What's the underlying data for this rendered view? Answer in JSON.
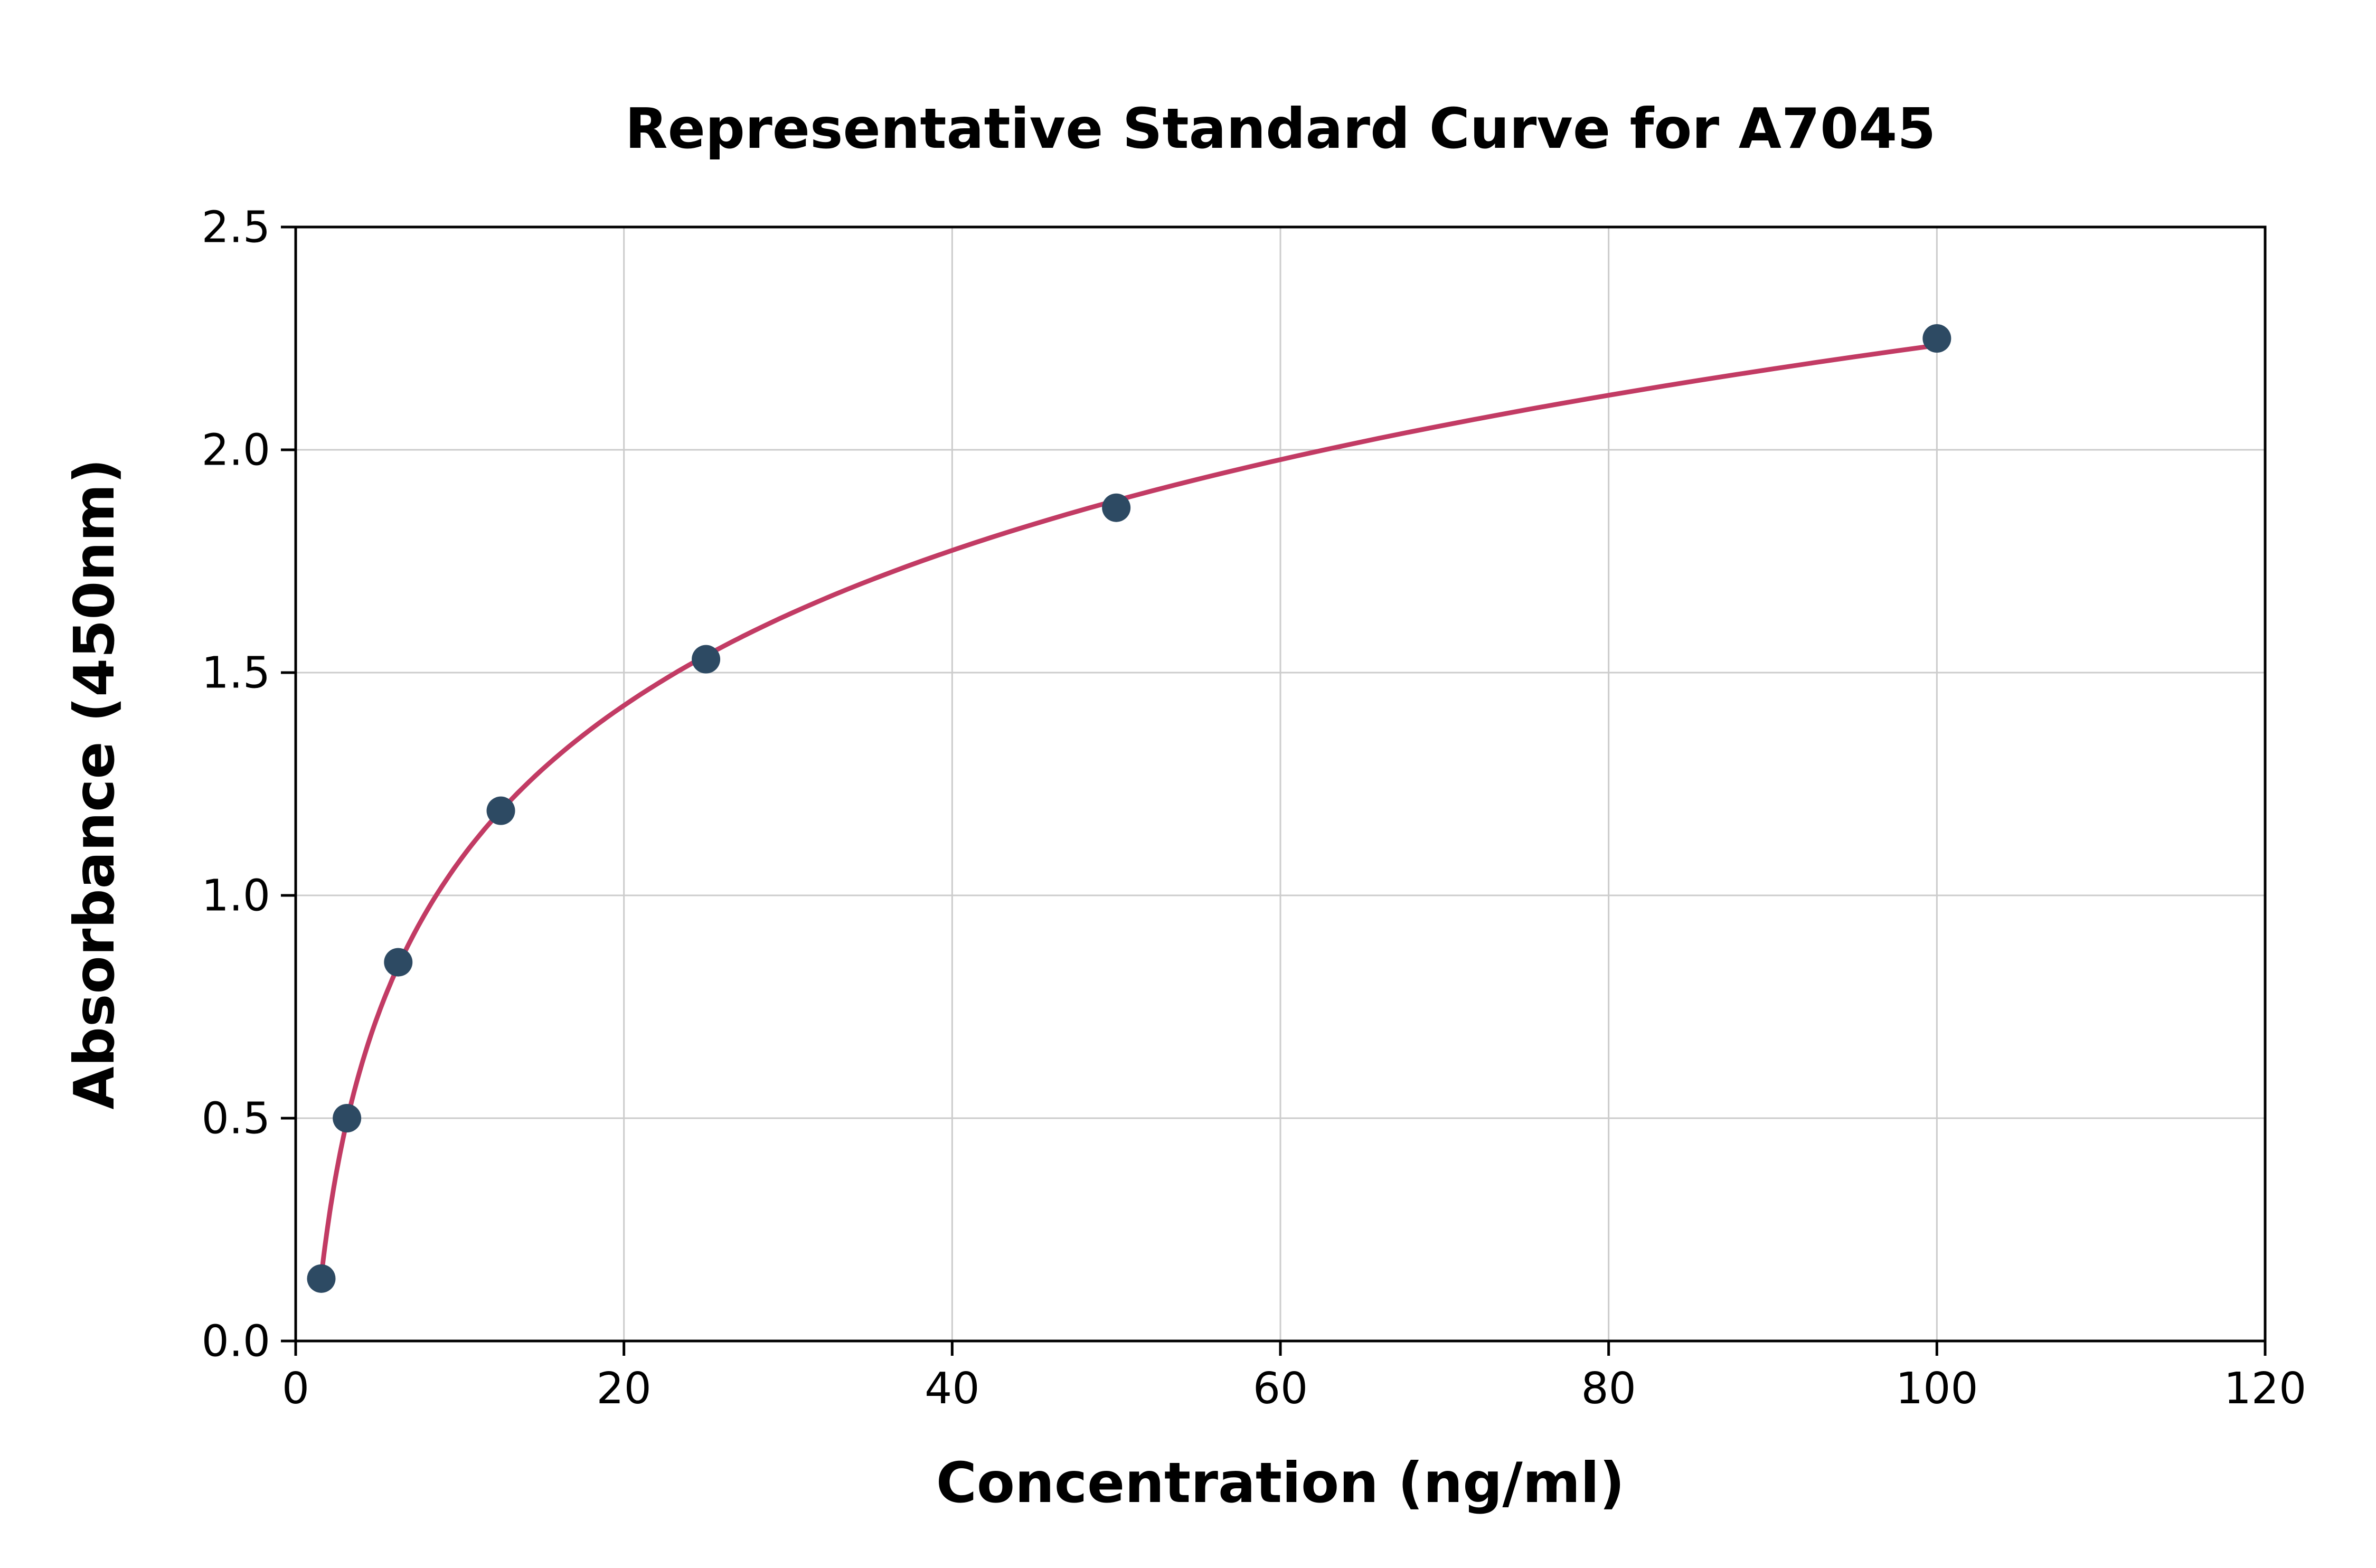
{
  "title": "Representative Standard Curve for A7045",
  "chart_data": {
    "type": "scatter",
    "title": "Representative Standard Curve for A7045",
    "xlabel": "Concentration (ng/ml)",
    "ylabel": "Absorbance (450nm)",
    "x": [
      1.56,
      3.125,
      6.25,
      12.5,
      25,
      50,
      100
    ],
    "y": [
      0.14,
      0.5,
      0.85,
      1.19,
      1.53,
      1.87,
      2.25
    ],
    "xlim": [
      0,
      120
    ],
    "ylim": [
      0,
      2.5
    ],
    "xticks": [
      "0",
      "20",
      "40",
      "60",
      "80",
      "100",
      "120"
    ],
    "yticks": [
      "0.0",
      "0.5",
      "1.0",
      "1.5",
      "2.0",
      "2.5"
    ],
    "grid": true,
    "legend": "none",
    "curve_fit": "logarithmic",
    "colors": {
      "curve": "#c23b64",
      "points": "#2d4a63",
      "grid": "#cccccc",
      "spine": "#000000"
    }
  }
}
